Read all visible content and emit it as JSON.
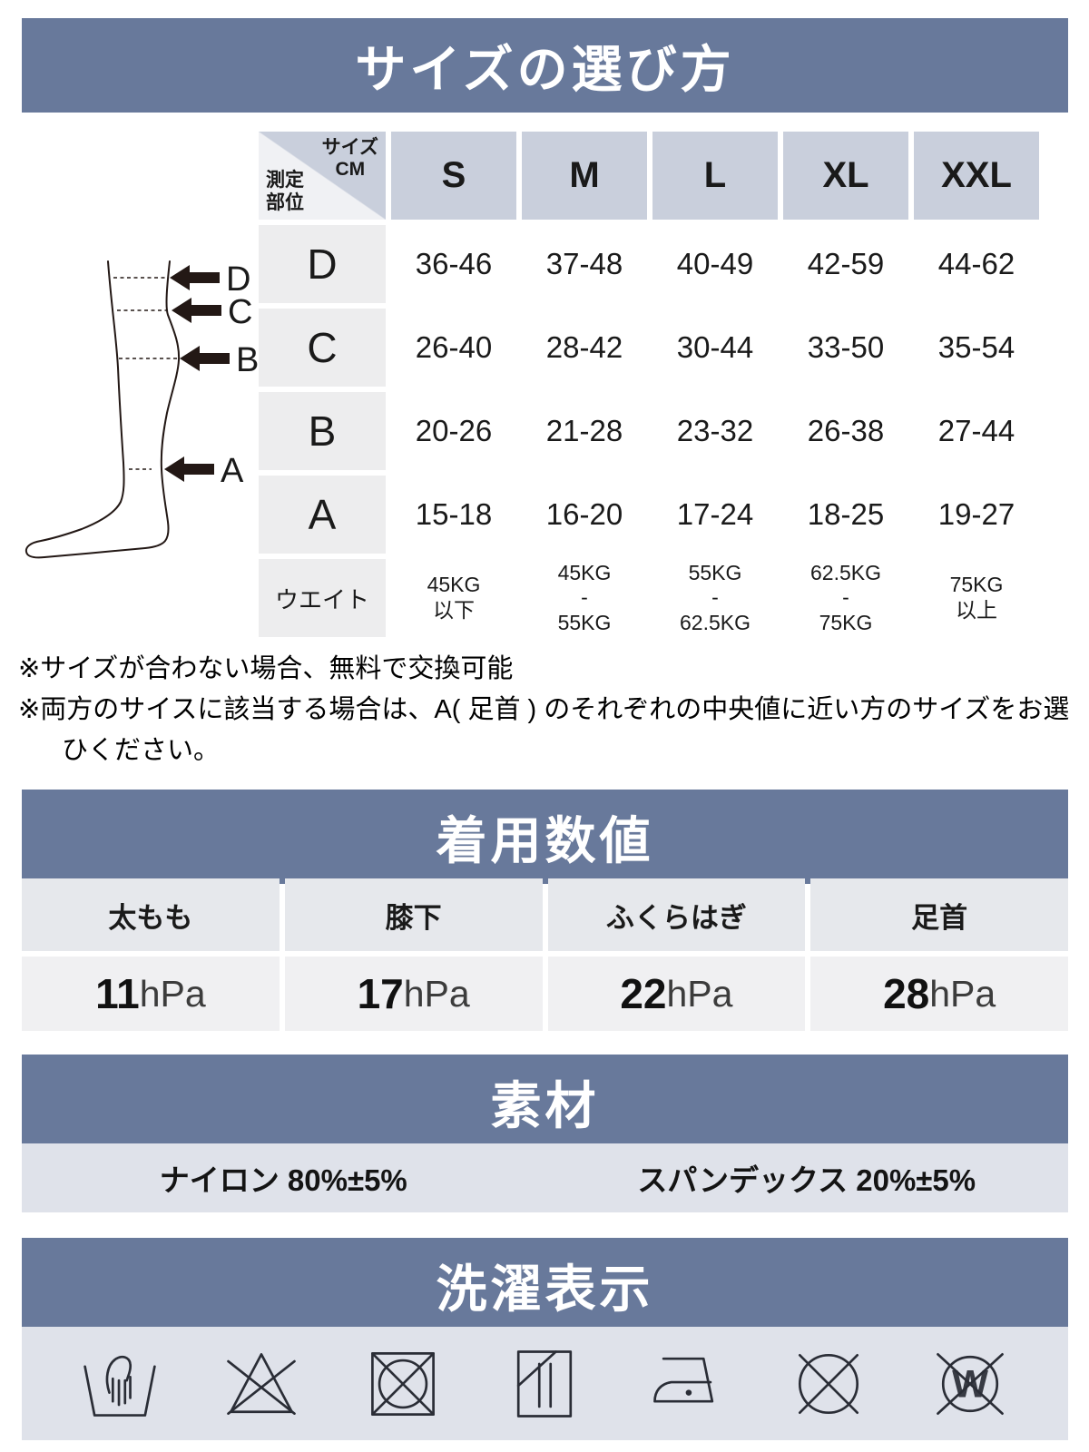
{
  "colors": {
    "banner_bg": "#68799b",
    "banner_text": "#ffffff",
    "size_header_bg": "#c9cfdc",
    "corner_light_bg": "#f0f1f4",
    "row_header_bg": "#ededee",
    "pressure_header_bg": "#e6e8ec",
    "pressure_value_bg": "#f0f0f2",
    "material_row_bg": "#dfe2ea",
    "laundry_panel_bg": "#dfe2ea",
    "ink": "#1a1a1a"
  },
  "size_section": {
    "title": "サイズの選び方",
    "corner": {
      "top_right": "サイズ",
      "top_right_sub": "CM",
      "bottom_left": "測定\n部位"
    },
    "columns": [
      "S",
      "M",
      "L",
      "XL",
      "XXL"
    ],
    "rows": [
      {
        "label": "D",
        "values": [
          "36-46",
          "37-48",
          "40-49",
          "42-59",
          "44-62"
        ]
      },
      {
        "label": "C",
        "values": [
          "26-40",
          "28-42",
          "30-44",
          "33-50",
          "35-54"
        ]
      },
      {
        "label": "B",
        "values": [
          "20-26",
          "21-28",
          "23-32",
          "26-38",
          "27-44"
        ]
      },
      {
        "label": "A",
        "values": [
          "15-18",
          "16-20",
          "17-24",
          "18-25",
          "19-27"
        ]
      },
      {
        "label": "ウエイト",
        "values": [
          "45KG\n以下",
          "45KG\n-\n55KG",
          "55KG\n-\n62.5KG",
          "62.5KG\n-\n75KG",
          "75KG\n以上"
        ]
      }
    ],
    "diagram_labels": [
      "D",
      "C",
      "B",
      "A"
    ]
  },
  "notes": [
    {
      "text": "※サイズが合わない場合、無料で交換可能",
      "indent": false
    },
    {
      "text": "※両方のサイスに該当する場合は、A( 足首 ) のそれぞれの中央値に近い方のサイズをお選",
      "indent": false
    },
    {
      "text": "ひください。",
      "indent": true
    }
  ],
  "pressure_section": {
    "title": "着用数値",
    "columns": [
      {
        "label": "太もも",
        "value": "11",
        "unit": "hPa"
      },
      {
        "label": "膝下",
        "value": "17",
        "unit": "hPa"
      },
      {
        "label": "ふくらはぎ",
        "value": "22",
        "unit": "hPa"
      },
      {
        "label": "足首",
        "value": "28",
        "unit": "hPa"
      }
    ]
  },
  "material_section": {
    "title": "素材",
    "items": [
      "ナイロン 80%±5%",
      "スパンデックス 20%±5%"
    ]
  },
  "laundry_section": {
    "title": "洗濯表示",
    "icons": [
      "hand-wash",
      "no-bleach",
      "no-tumble-dry",
      "drip-dry-shade",
      "iron-low",
      "no-dry-clean",
      "no-wet-clean"
    ]
  }
}
